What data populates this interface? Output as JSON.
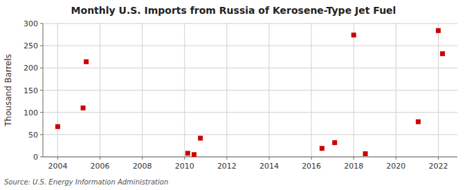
{
  "chart_data": {
    "type": "scatter",
    "title": "Monthly U.S. Imports from Russia of Kerosene-Type Jet Fuel",
    "ylabel": "Thousand Barrels",
    "source": "Source: U.S. Energy Information Administration",
    "x": [
      2004.0,
      2005.2,
      2005.35,
      2010.15,
      2010.45,
      2010.75,
      2016.5,
      2017.1,
      2018.0,
      2018.55,
      2021.05,
      2022.0,
      2022.2
    ],
    "values": [
      68,
      110,
      214,
      8,
      5,
      42,
      19,
      32,
      274,
      7,
      79,
      284,
      232
    ],
    "color": "#cc0000",
    "marker": "square",
    "xlim": [
      2003.3,
      2022.9
    ],
    "ylim": [
      0,
      300
    ],
    "xticks": [
      2004,
      2006,
      2008,
      2010,
      2012,
      2014,
      2016,
      2018,
      2020,
      2022
    ],
    "yticks": [
      0,
      50,
      100,
      150,
      200,
      250,
      300
    ],
    "grid": true
  }
}
